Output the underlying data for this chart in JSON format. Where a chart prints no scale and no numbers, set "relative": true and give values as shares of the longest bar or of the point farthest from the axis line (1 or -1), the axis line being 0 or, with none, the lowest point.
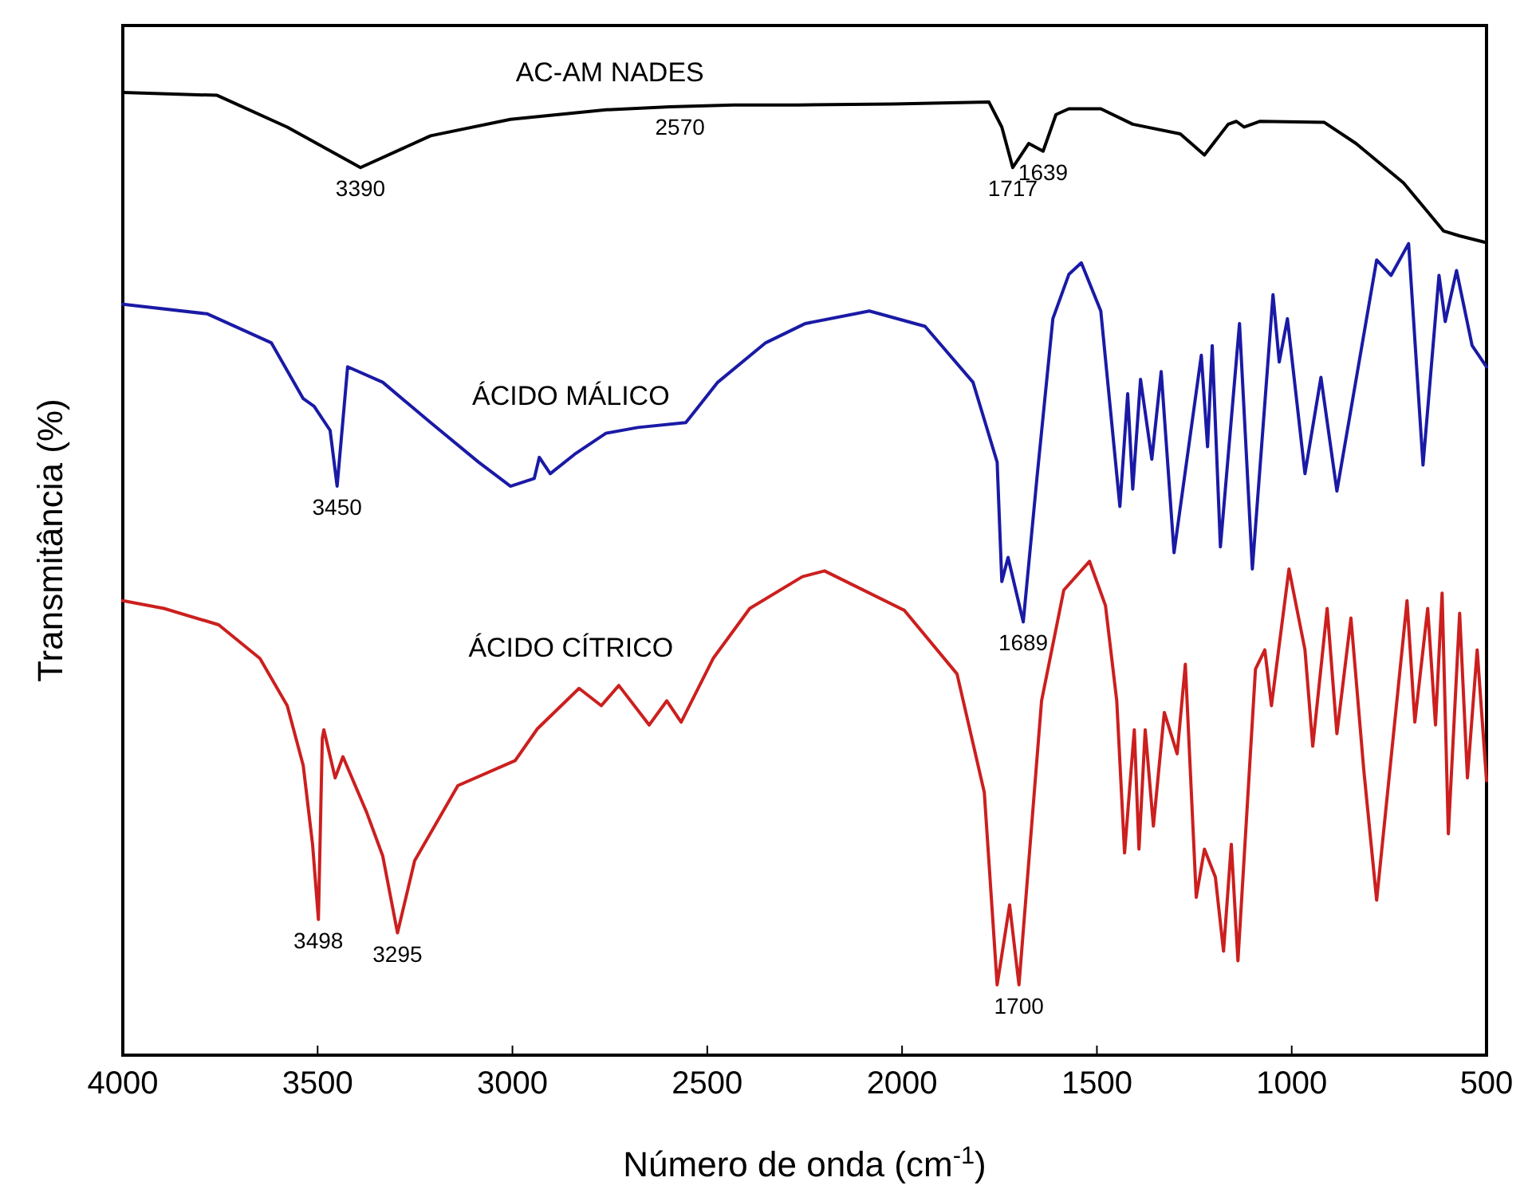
{
  "chart_data": {
    "type": "line",
    "relative": true,
    "xlabel": "Número de onda (cm$^{-1}$)",
    "ylabel": "Transmitância (%)",
    "xlim": [
      4000,
      500
    ],
    "xticks": [
      4000,
      3500,
      3000,
      2500,
      2000,
      1500,
      1000,
      500
    ],
    "series": [
      {
        "name": "AC-AM NADES",
        "color": "#000000",
        "x": [
          4000,
          3758,
          3578,
          3390,
          3210,
          3005,
          2760,
          2596,
          2432,
          2268,
          2023,
          1777,
          1744,
          1716,
          1675,
          1638,
          1605,
          1572,
          1490,
          1408,
          1286,
          1224,
          1163,
          1142,
          1122,
          1081,
          917,
          835,
          713,
          610,
          569,
          500
        ],
        "values": [
          1.0,
          0.997,
          0.964,
          0.922,
          0.955,
          0.972,
          0.982,
          0.985,
          0.987,
          0.987,
          0.988,
          0.99,
          0.964,
          0.922,
          0.947,
          0.939,
          0.977,
          0.983,
          0.983,
          0.967,
          0.957,
          0.935,
          0.967,
          0.97,
          0.964,
          0.97,
          0.969,
          0.947,
          0.906,
          0.856,
          0.851,
          0.844
        ]
      },
      {
        "name": "ÁCIDO MÁLICO",
        "color": "#1a1aa6",
        "x": [
          4000,
          3783,
          3619,
          3537,
          3509,
          3468,
          3450,
          3423,
          3333,
          3210,
          3087,
          3005,
          2944,
          2931,
          2903,
          2841,
          2760,
          2678,
          2555,
          2473,
          2350,
          2248,
          2084,
          1941,
          1818,
          1756,
          1744,
          1728,
          1689,
          1654,
          1613,
          1572,
          1540,
          1490,
          1441,
          1421,
          1408,
          1388,
          1359,
          1335,
          1302,
          1232,
          1216,
          1204,
          1183,
          1134,
          1101,
          1048,
          1032,
          1011,
          966,
          925,
          884,
          782,
          745,
          700,
          663,
          622,
          606,
          577,
          537,
          500
        ],
        "values": [
          0.78,
          0.77,
          0.74,
          0.682,
          0.674,
          0.649,
          0.591,
          0.715,
          0.699,
          0.657,
          0.616,
          0.591,
          0.599,
          0.621,
          0.604,
          0.624,
          0.646,
          0.652,
          0.657,
          0.699,
          0.74,
          0.76,
          0.773,
          0.757,
          0.699,
          0.616,
          0.492,
          0.517,
          0.45,
          0.599,
          0.765,
          0.811,
          0.823,
          0.773,
          0.57,
          0.687,
          0.588,
          0.702,
          0.619,
          0.71,
          0.522,
          0.727,
          0.632,
          0.737,
          0.528,
          0.76,
          0.505,
          0.79,
          0.72,
          0.765,
          0.604,
          0.704,
          0.586,
          0.826,
          0.81,
          0.843,
          0.613,
          0.81,
          0.762,
          0.815,
          0.737,
          0.715
        ]
      },
      {
        "name": "ÁCIDO CÍTRICO",
        "color": "#cc1f1f",
        "x": [
          4000,
          3894,
          3754,
          3648,
          3578,
          3537,
          3513,
          3498,
          3488,
          3484,
          3455,
          3435,
          3374,
          3333,
          3295,
          3251,
          3140,
          2993,
          2936,
          2829,
          2772,
          2727,
          2649,
          2604,
          2567,
          2485,
          2391,
          2256,
          2199,
          1994,
          1859,
          1789,
          1756,
          1724,
          1700,
          1642,
          1585,
          1519,
          1478,
          1449,
          1429,
          1404,
          1392,
          1376,
          1355,
          1327,
          1294,
          1273,
          1245,
          1224,
          1196,
          1175,
          1155,
          1138,
          1093,
          1069,
          1052,
          1007,
          966,
          946,
          909,
          884,
          848,
          815,
          782,
          704,
          684,
          651,
          631,
          614,
          598,
          569,
          549,
          524,
          500
        ],
        "values": [
          0.472,
          0.464,
          0.447,
          0.412,
          0.363,
          0.301,
          0.219,
          0.141,
          0.329,
          0.338,
          0.288,
          0.31,
          0.252,
          0.207,
          0.127,
          0.202,
          0.28,
          0.306,
          0.339,
          0.381,
          0.363,
          0.384,
          0.343,
          0.368,
          0.346,
          0.412,
          0.464,
          0.497,
          0.503,
          0.462,
          0.396,
          0.273,
          0.073,
          0.156,
          0.073,
          0.368,
          0.483,
          0.513,
          0.467,
          0.368,
          0.21,
          0.338,
          0.214,
          0.338,
          0.238,
          0.356,
          0.313,
          0.406,
          0.164,
          0.214,
          0.185,
          0.108,
          0.219,
          0.098,
          0.401,
          0.421,
          0.363,
          0.505,
          0.421,
          0.321,
          0.464,
          0.334,
          0.454,
          0.296,
          0.161,
          0.472,
          0.346,
          0.464,
          0.343,
          0.48,
          0.23,
          0.459,
          0.288,
          0.421,
          0.285
        ]
      }
    ],
    "annotations": [
      {
        "text": "3390",
        "x": 3390,
        "y": 0.922
      },
      {
        "text": "2570",
        "x": 2570,
        "y": 0.986
      },
      {
        "text": "1717",
        "x": 1716,
        "y": 0.922
      },
      {
        "text": "1639",
        "x": 1638,
        "y": 0.939
      },
      {
        "text": "3450",
        "x": 3450,
        "y": 0.591
      },
      {
        "text": "1689",
        "x": 1689,
        "y": 0.45
      },
      {
        "text": "3498",
        "x": 3498,
        "y": 0.141
      },
      {
        "text": "3295",
        "x": 3295,
        "y": 0.127
      },
      {
        "text": "1700",
        "x": 1700,
        "y": 0.073
      }
    ]
  }
}
